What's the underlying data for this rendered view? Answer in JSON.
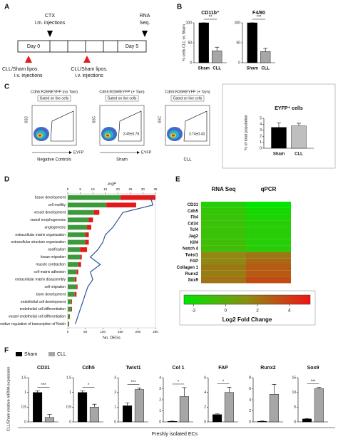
{
  "panel_labels": [
    "A",
    "B",
    "C",
    "D",
    "E",
    "F"
  ],
  "timeline": {
    "ctx": "CTX",
    "ctx_sub": "i.m. injections",
    "rna": "RNA",
    "rna_sub": "Seq.",
    "day_start": "Day 0",
    "day_end": "Day 5",
    "injection": [
      "CLL/Sham lipos.",
      "i.v. injections"
    ],
    "injection_2": [
      "CLL/Sham lipos.",
      "i.v. injections"
    ]
  },
  "flow": {
    "plots": [
      {
        "title": "Cdh5:R26REYFP (no Tam)",
        "gate": "Gated on live cells",
        "y_label": "SSC",
        "caption": "Negative Controls",
        "x_label": "EYFP"
      },
      {
        "title": "Cdh5:R26REYFP (+ Tam)",
        "gate": "Gated on live cells",
        "y_label": "SSC",
        "caption": "Sham",
        "x_label": "EYFP",
        "stat": "3.49±0.78"
      },
      {
        "title": "Cdh5:R26REYFP (+ Tam)",
        "gate": "Gated on live cells",
        "y_label": "SSC",
        "caption": "CLL",
        "stat": "3.74±0.43"
      }
    ]
  },
  "chart_data": [
    {
      "type": "multibar",
      "y_label": "% cells CLL vs Sham",
      "categories": [
        "Sham",
        "CLL"
      ],
      "colors": [
        "#000000",
        "#a6a6a6"
      ],
      "panels": [
        {
          "title": "CD11b⁺",
          "values": [
            100,
            30
          ],
          "errors": [
            0,
            9
          ],
          "annotation": "**",
          "ylim": [
            0,
            100
          ],
          "yticks": [
            0,
            50,
            100
          ]
        },
        {
          "title": "F4/80",
          "values": [
            100,
            28
          ],
          "errors": [
            0,
            8
          ],
          "annotation": "***",
          "ylim": [
            0,
            100
          ],
          "yticks": [
            0,
            50,
            100
          ]
        }
      ]
    },
    {
      "type": "multibar",
      "y_label": "% of total population",
      "categories": [
        "Sham",
        "CLL"
      ],
      "colors": [
        "#000000",
        "#bfbfbf"
      ],
      "panels": [
        {
          "title": "EYFP⁺ cells",
          "values": [
            3.49,
            3.74
          ],
          "errors": [
            0.78,
            0.43
          ],
          "ylim": [
            0,
            5
          ],
          "yticks": [
            0,
            1,
            2,
            3,
            4,
            5
          ]
        }
      ]
    },
    {
      "type": "combo",
      "x_label": "No. DEGs",
      "x2_label": "-logP",
      "categories": [
        "tissue development",
        "cell motility",
        "vessel development",
        "vessel morphogenesis",
        "angiogenesis",
        "extracellular matrix organization",
        "extracellular structure organization",
        "ossification",
        "tissue migration",
        "muscle contraction",
        "cell-matrix adhesion",
        "extracellular matrix disassembly",
        "cell migration",
        "bone development",
        "endothelial cell development",
        "endothelial cell differentiation",
        "vessel endothelial cell differentiation",
        "positive regulation of transcription of Notch"
      ],
      "xlim": [
        0,
        250
      ],
      "xticks": [
        0,
        50,
        100,
        150,
        200,
        250
      ],
      "x2lim": [
        0,
        35
      ],
      "x2ticks": [
        0,
        5,
        10,
        15,
        20,
        25,
        30,
        35
      ],
      "series": [
        {
          "color": "#3c9a3c",
          "values": [
            150,
            110,
            75,
            60,
            55,
            50,
            50,
            35,
            35,
            30,
            25,
            20,
            25,
            20,
            10,
            10,
            5,
            3
          ]
        },
        {
          "color": "#e31a1c",
          "values": [
            100,
            85,
            15,
            12,
            12,
            10,
            10,
            20,
            5,
            8,
            5,
            5,
            3,
            5,
            2,
            2,
            1,
            1
          ]
        },
        {
          "type": "line",
          "axis": "x2",
          "color": "#2b5797",
          "values": [
            33,
            34,
            22,
            20,
            18,
            15,
            14,
            12,
            9,
            13,
            9,
            10,
            8,
            7,
            6,
            5,
            4,
            3
          ]
        }
      ]
    },
    {
      "type": "heatmap",
      "columns": [
        "RNA Seq",
        "qPCR"
      ],
      "rows": [
        "CD31",
        "Cdh5",
        "Flt4",
        "Cd34",
        "Tcf4",
        "Jag2",
        "Klf4",
        "Notch 4",
        "Twist1",
        "FAP",
        "Collagen 1",
        "Runx2",
        "Sox9"
      ],
      "values": [
        [
          -1.5,
          -2.5
        ],
        [
          -1.2,
          -2
        ],
        [
          -1,
          -1.8
        ],
        [
          -1,
          -1.5
        ],
        [
          -1,
          -1.5
        ],
        [
          -1,
          -1.5
        ],
        [
          -0.8,
          -1.5
        ],
        [
          -0.8,
          -1.5
        ],
        [
          1.5,
          2
        ],
        [
          1.5,
          2.5
        ],
        [
          2,
          3
        ],
        [
          1.8,
          3
        ],
        [
          2.2,
          3.5
        ]
      ],
      "clim": [
        -2.6,
        5.3
      ],
      "cticks": [
        -2,
        0,
        2,
        4
      ],
      "colorbar_label": "Log2 Fold Change",
      "colormap": [
        "#00e600",
        "#8c8c14",
        "#f01414"
      ]
    },
    {
      "type": "multibar",
      "y_label": "CLL/Sham relative mRNA expression",
      "x_label": "Freshly isolated ECs",
      "series": [
        {
          "name": "Sham",
          "color": "#000000"
        },
        {
          "name": "CLL",
          "color": "#a6a6a6"
        }
      ],
      "panels": [
        {
          "title": "CD31",
          "values": [
            1,
            0.15
          ],
          "errors": [
            0.05,
            0.1
          ],
          "annotation": "***",
          "ylim": [
            0,
            1.5
          ],
          "yticks": [
            0,
            0.5,
            1,
            1.5
          ]
        },
        {
          "title": "Cdh5",
          "values": [
            1,
            0.5
          ],
          "errors": [
            0.05,
            0.1
          ],
          "annotation": "*",
          "ylim": [
            0,
            1.5
          ],
          "yticks": [
            0,
            0.5,
            1,
            1.5
          ]
        },
        {
          "title": "Twist1",
          "values": [
            1.1,
            2.2
          ],
          "errors": [
            0.2,
            0.1
          ],
          "annotation": "***",
          "ylim": [
            0,
            3
          ],
          "yticks": [
            0,
            1,
            2,
            3
          ]
        },
        {
          "title": "Col 1",
          "values": [
            0.05,
            2.3
          ],
          "errors": [
            0.02,
            0.8
          ],
          "annotation": "*",
          "ylim": [
            0,
            4
          ],
          "yticks": [
            0,
            1,
            2,
            3,
            4
          ]
        },
        {
          "title": "FAP",
          "values": [
            1,
            4
          ],
          "errors": [
            0.1,
            0.7
          ],
          "annotation": "*",
          "ylim": [
            0,
            6
          ],
          "yticks": [
            0,
            2,
            4,
            6
          ]
        },
        {
          "title": "Runx2",
          "values": [
            0.1,
            5
          ],
          "errors": [
            0.05,
            1.8
          ],
          "ylim": [
            0,
            8
          ],
          "yticks": [
            0,
            2,
            4,
            6,
            8
          ]
        },
        {
          "title": "Sox9",
          "values": [
            1,
            11.3
          ],
          "errors": [
            0.1,
            0.4
          ],
          "annotation": "***",
          "ylim": [
            0,
            15
          ],
          "yticks": [
            0,
            5,
            10,
            15
          ]
        }
      ]
    }
  ]
}
